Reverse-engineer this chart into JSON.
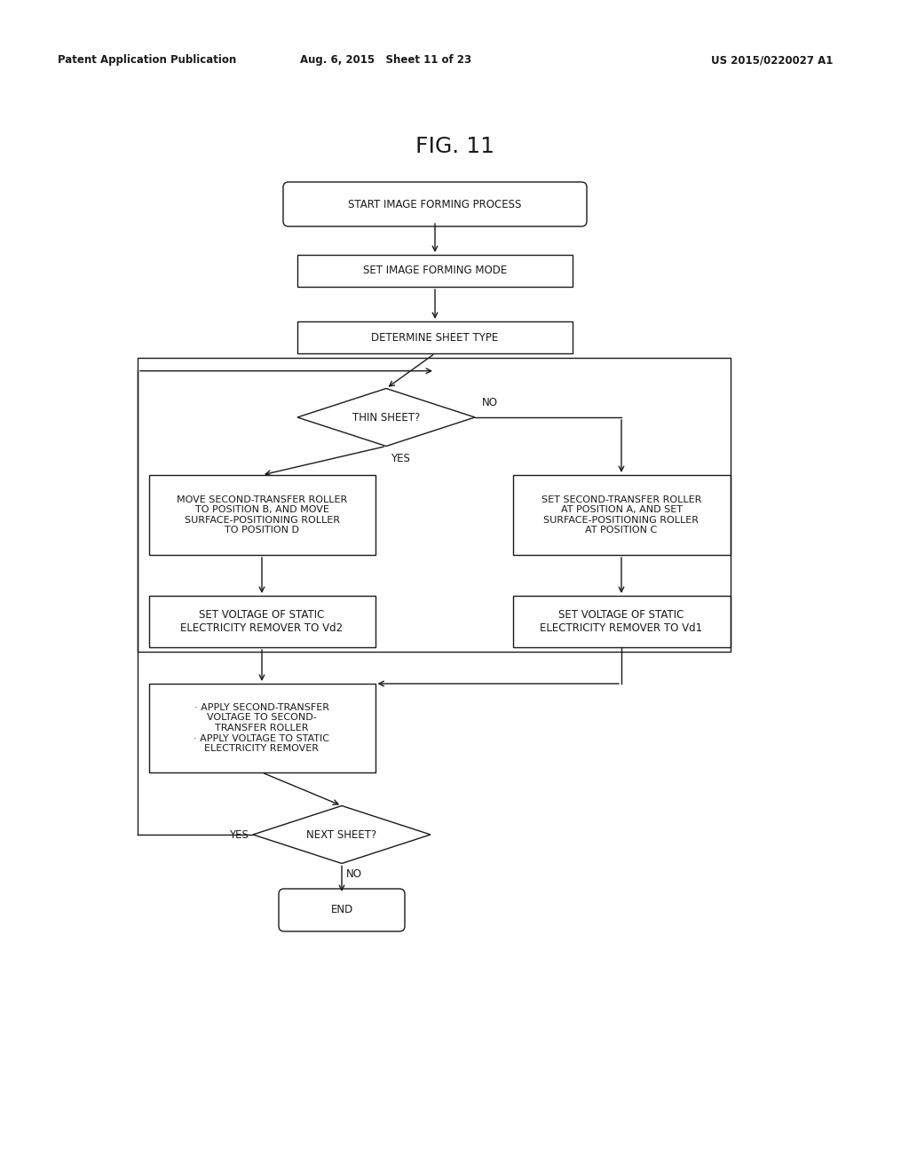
{
  "title": "FIG. 11",
  "header_left": "Patent Application Publication",
  "header_mid": "Aug. 6, 2015   Sheet 11 of 23",
  "header_right": "US 2015/0220027 A1",
  "bg_color": "#ffffff",
  "line_color": "#1a1a1a",
  "text_color": "#1a1a1a",
  "font_main": "DejaVu Sans",
  "lw": 1.0
}
